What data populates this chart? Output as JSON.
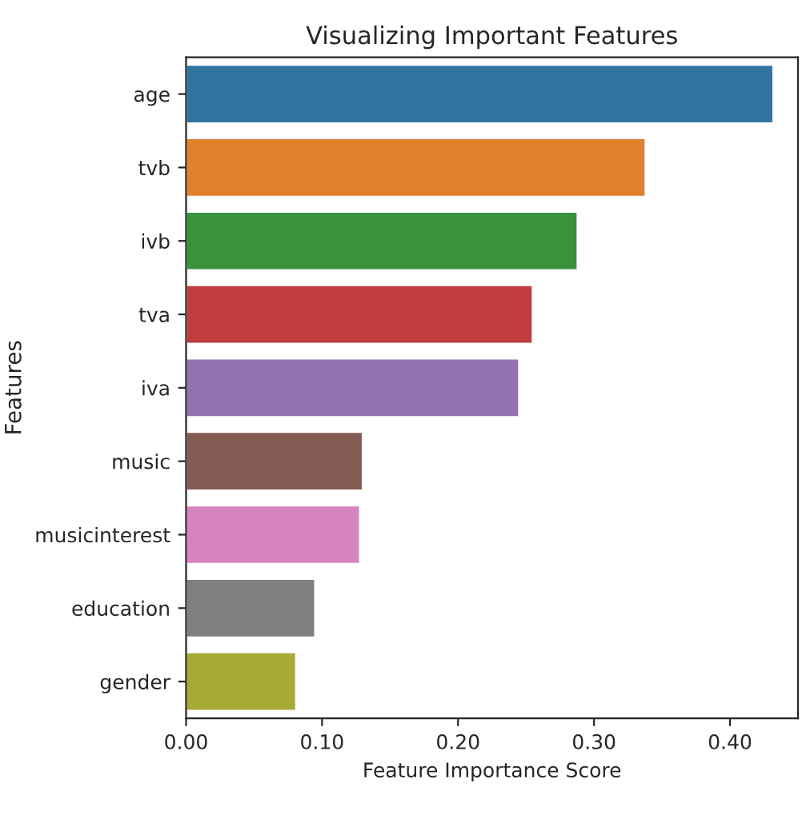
{
  "chart_data": {
    "type": "bar",
    "orientation": "horizontal",
    "title": "Visualizing Important Features",
    "xlabel": "Feature Importance Score",
    "ylabel": "Features",
    "categories": [
      "age",
      "tvb",
      "ivb",
      "tva",
      "iva",
      "music",
      "musicinterest",
      "education",
      "gender"
    ],
    "values": [
      0.432,
      0.338,
      0.288,
      0.255,
      0.245,
      0.13,
      0.128,
      0.095,
      0.081
    ],
    "colors": [
      "#3274a1",
      "#e1812c",
      "#3a923a",
      "#c03d3e",
      "#9372b2",
      "#845b53",
      "#d684bd",
      "#7f7f7f",
      "#a9aa35"
    ],
    "xlim": [
      0,
      0.45
    ],
    "xticks": [
      {
        "value": 0,
        "label": "0.00"
      },
      {
        "value": 0.1,
        "label": "0.10"
      },
      {
        "value": 0.2,
        "label": "0.20"
      },
      {
        "value": 0.3,
        "label": "0.30"
      },
      {
        "value": 0.4,
        "label": "0.40"
      }
    ],
    "grid": false,
    "legend": false
  }
}
